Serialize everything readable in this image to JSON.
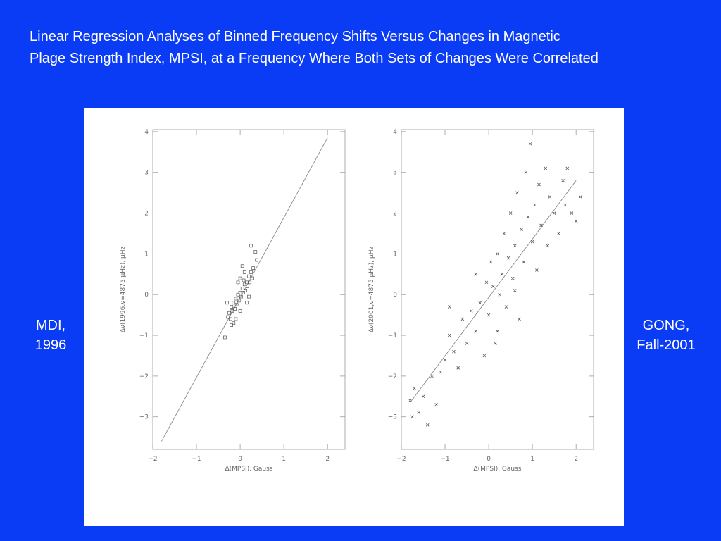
{
  "title": [
    "Linear Regression Analyses of Binned Frequency Shifts Versus Changes in Magnetic",
    "Plage Strength Index, MPSI, at a Frequency Where Both Sets of Changes Were Correlated"
  ],
  "chart_data": [
    {
      "type": "scatter",
      "side_label": [
        "MDI,",
        "1996"
      ],
      "x_label": "Δ(MPSI), Gauss",
      "y_label": "Δν(1996,ν=4875 μHz), μHz",
      "xlim": [
        -2,
        2.4
      ],
      "ylim": [
        -3.8,
        4.05
      ],
      "xticks": [
        {
          "value": -2,
          "label": "−2"
        },
        {
          "value": -1,
          "label": "−1"
        },
        0,
        1,
        2
      ],
      "yticks": [
        {
          "value": -3,
          "label": "−3"
        },
        {
          "value": -2,
          "label": "−2"
        },
        {
          "value": -1,
          "label": "−1"
        },
        0,
        1,
        2,
        3,
        4
      ],
      "marker": "square",
      "color": "#555555",
      "x": [
        -0.28,
        -0.25,
        -0.22,
        -0.2,
        -0.18,
        -0.15,
        -0.12,
        -0.1,
        -0.08,
        -0.05,
        -0.03,
        0,
        0.02,
        0.05,
        0.07,
        0.1,
        0.12,
        0.15,
        0.17,
        0.2,
        0.22,
        0.25,
        0.28,
        0.3,
        0.05,
        0.0,
        -0.05,
        0.15,
        -0.2,
        -0.35,
        -0.1,
        0.35,
        0.38,
        0.25,
        0.1,
        -0.3,
        0.2,
        -0.15,
        0.0,
        0.08
      ],
      "y": [
        -0.55,
        -0.45,
        -0.6,
        -0.3,
        -0.4,
        -0.2,
        -0.35,
        -0.1,
        -0.25,
        0.0,
        -0.15,
        0.05,
        -0.05,
        0.15,
        0.05,
        0.25,
        0.1,
        0.3,
        0.2,
        0.45,
        0.3,
        0.55,
        0.4,
        0.65,
        0.7,
        0.4,
        0.3,
        -0.2,
        -0.75,
        -1.05,
        -0.6,
        1.05,
        0.85,
        1.2,
        0.55,
        -0.2,
        -0.05,
        -0.7,
        -0.4,
        0.35
      ],
      "fit": {
        "x": [
          -1.8,
          2.0
        ],
        "y": [
          -3.6,
          3.85
        ]
      }
    },
    {
      "type": "scatter",
      "side_label": [
        "GONG,",
        "Fall-2001"
      ],
      "x_label": "Δ(MPSI), Gauss",
      "y_label": "Δν(2001,ν=4875 μHz), μHz",
      "xlim": [
        -2,
        2.4
      ],
      "ylim": [
        -3.8,
        4.05
      ],
      "xticks": [
        {
          "value": -2,
          "label": "−2"
        },
        {
          "value": -1,
          "label": "−1"
        },
        0,
        1,
        2
      ],
      "yticks": [
        {
          "value": -3,
          "label": "−3"
        },
        {
          "value": -2,
          "label": "−2"
        },
        {
          "value": -1,
          "label": "−1"
        },
        0,
        1,
        2,
        3,
        4
      ],
      "marker": "x",
      "color": "#555555",
      "x": [
        -1.8,
        -1.7,
        -1.75,
        -1.6,
        -1.5,
        -1.4,
        -1.3,
        -1.2,
        -1.1,
        -1.0,
        -0.9,
        -0.8,
        -0.7,
        -0.6,
        -0.5,
        -0.4,
        -0.3,
        -0.2,
        -0.1,
        -0.05,
        0,
        0.05,
        0.1,
        0.15,
        0.2,
        0.25,
        0.3,
        0.35,
        0.4,
        0.45,
        0.5,
        0.55,
        0.6,
        0.65,
        0.7,
        0.75,
        0.8,
        0.85,
        0.9,
        0.95,
        1.0,
        1.05,
        1.1,
        1.15,
        1.2,
        1.3,
        1.35,
        1.4,
        1.5,
        1.6,
        1.7,
        1.75,
        1.8,
        1.9,
        2.0,
        2.1,
        -0.3,
        0.2,
        0.6,
        -0.9
      ],
      "y": [
        -2.6,
        -2.3,
        -3.0,
        -2.9,
        -2.5,
        -3.2,
        -2.0,
        -2.7,
        -1.9,
        -1.6,
        -1.0,
        -1.4,
        -1.8,
        -0.6,
        -1.2,
        -0.4,
        -0.9,
        -0.2,
        -1.5,
        0.3,
        -0.5,
        0.8,
        0.2,
        -1.2,
        1.0,
        0.0,
        0.5,
        1.5,
        -0.3,
        0.9,
        2.0,
        0.4,
        1.2,
        2.5,
        -0.6,
        1.6,
        0.8,
        3.0,
        1.9,
        3.7,
        1.3,
        2.2,
        0.6,
        2.7,
        1.7,
        3.1,
        1.2,
        2.4,
        2.0,
        1.5,
        2.8,
        2.2,
        3.1,
        2.0,
        1.8,
        2.4,
        0.5,
        -0.9,
        0.1,
        -0.3
      ],
      "fit": {
        "x": [
          -1.8,
          2.0
        ],
        "y": [
          -2.65,
          2.8
        ]
      }
    }
  ]
}
